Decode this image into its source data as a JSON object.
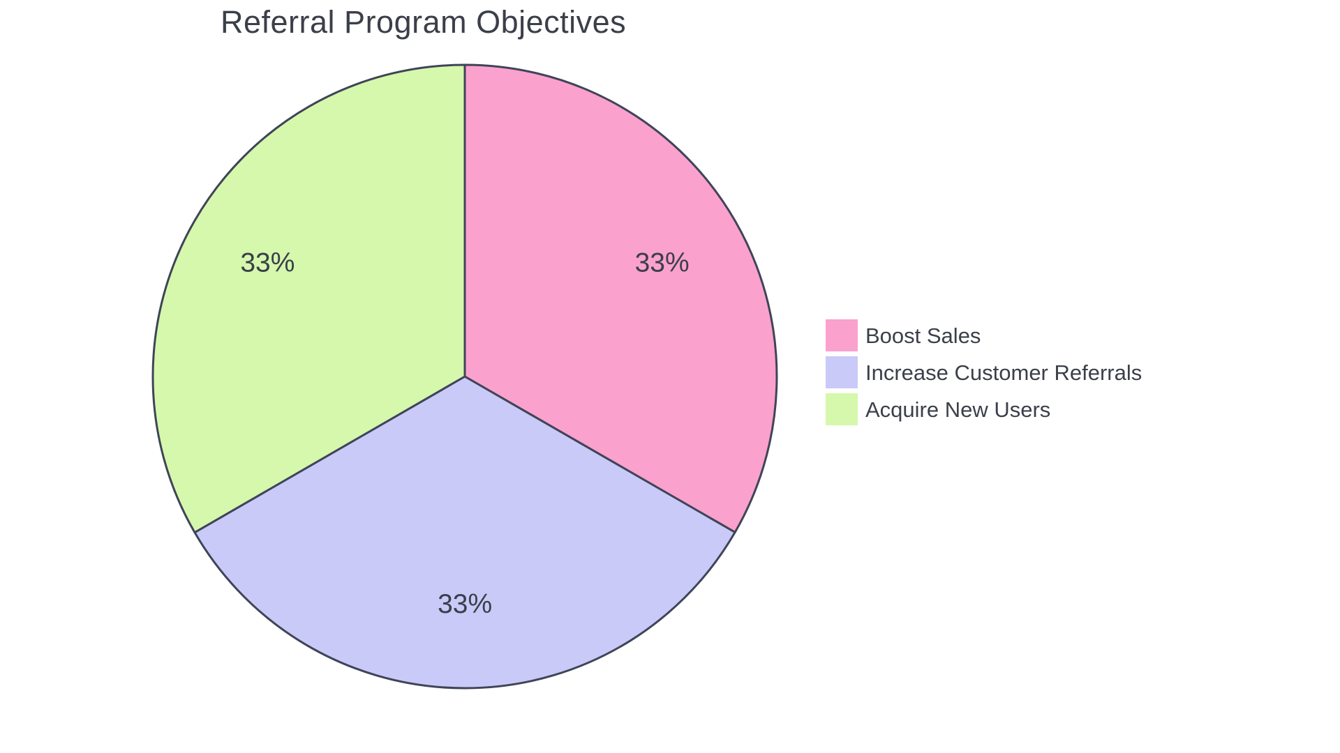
{
  "chart_data": {
    "type": "pie",
    "title": "Referral Program Objectives",
    "labels": [
      "Boost Sales",
      "Increase Customer Referrals",
      "Acquire New Users"
    ],
    "values": [
      33.33,
      33.33,
      33.34
    ],
    "percent_labels": [
      "33%",
      "33%",
      "33%"
    ],
    "colors": [
      "#FBA1CD",
      "#C9CAF8",
      "#D5F8AC"
    ],
    "slice_border_color": "#3F4458",
    "label_color": "#3B3F49",
    "start_angle": "top",
    "direction": "clockwise",
    "legend_position": "right",
    "legend_entries": [
      {
        "label": "Boost Sales",
        "color": "#FBA1CD"
      },
      {
        "label": "Increase Customer Referrals",
        "color": "#C9CAF8"
      },
      {
        "label": "Acquire New Users",
        "color": "#D5F8AC"
      }
    ]
  }
}
